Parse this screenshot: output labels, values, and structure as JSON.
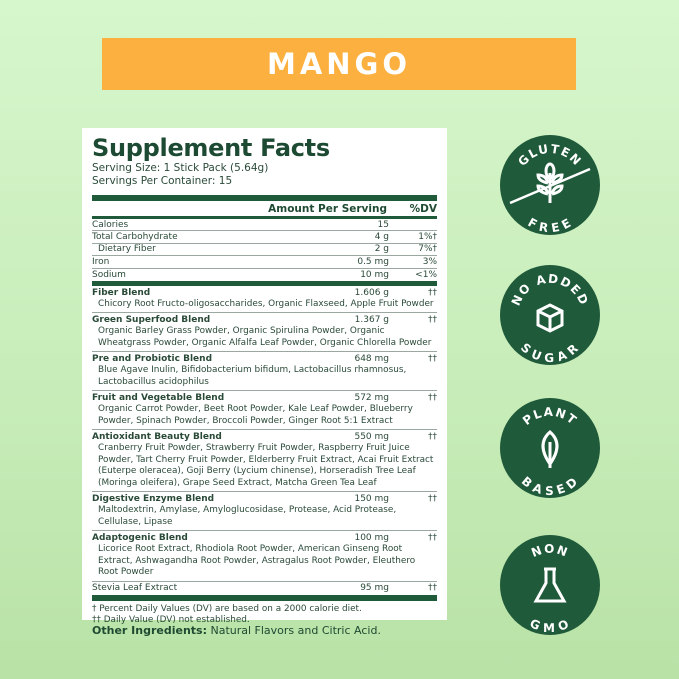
{
  "banner": {
    "flavor": "MANGO",
    "color": "#fbb040"
  },
  "facts": {
    "title": "Supplement Facts",
    "serving_size": "Serving Size: 1 Stick Pack (5.64g)",
    "servings_per_container": "Servings Per Container: 15",
    "header": {
      "amount": "Amount Per Serving",
      "dv": "%DV"
    },
    "nutrients": [
      {
        "name": "Calories",
        "amount": "15",
        "dv": ""
      },
      {
        "name": "Total Carbohydrate",
        "amount": "4 g",
        "dv": "1%†"
      },
      {
        "name": "Dietary Fiber",
        "amount": "2 g",
        "dv": "7%†"
      },
      {
        "name": "Iron",
        "amount": "0.5 mg",
        "dv": "3%"
      },
      {
        "name": "Sodium",
        "amount": "10 mg",
        "dv": "<1%"
      }
    ],
    "blends": [
      {
        "name": "Fiber Blend",
        "amount": "1.606 g",
        "dv": "††",
        "ingredients": "Chicory Root Fructo-oligosaccharides, Organic Flaxseed, Apple Fruit Powder"
      },
      {
        "name": "Green Superfood Blend",
        "amount": "1.367 g",
        "dv": "††",
        "ingredients": "Organic Barley Grass Powder, Organic Spirulina Powder, Organic Wheatgrass Powder, Organic Alfalfa Leaf Powder, Organic Chlorella Powder"
      },
      {
        "name": "Pre and Probiotic Blend",
        "amount": "648 mg",
        "dv": "††",
        "ingredients": "Blue Agave Inulin, Bifidobacterium bifidum, Lactobacillus rhamnosus, Lactobacillus acidophilus"
      },
      {
        "name": "Fruit and Vegetable Blend",
        "amount": "572 mg",
        "dv": "††",
        "ingredients": "Organic Carrot Powder, Beet Root Powder, Kale Leaf Powder, Blueberry Powder, Spinach Powder, Broccoli Powder, Ginger Root 5:1 Extract"
      },
      {
        "name": "Antioxidant Beauty Blend",
        "amount": "550 mg",
        "dv": "††",
        "ingredients": "Cranberry Fruit Powder, Strawberry Fruit Powder, Raspberry Fruit Juice Powder, Tart Cherry Fruit Powder, Elderberry Fruit Extract, Acai Fruit Extract (Euterpe oleracea), Goji Berry (Lycium chinense), Horseradish Tree Leaf (Moringa oleifera), Grape Seed Extract, Matcha Green Tea Leaf"
      },
      {
        "name": "Digestive Enzyme Blend",
        "amount": "150 mg",
        "dv": "††",
        "ingredients": "Maltodextrin, Amylase, Amyloglucosidase, Protease, Acid Protease, Cellulase, Lipase"
      },
      {
        "name": "Adaptogenic Blend",
        "amount": "100 mg",
        "dv": "††",
        "ingredients": "Licorice Root Extract, Rhodiola Root Powder, American Ginseng Root Extract, Ashwagandha Root Powder, Astragalus Root Powder, Eleuthero Root Powder"
      }
    ],
    "stevia": {
      "name": "Stevia Leaf Extract",
      "amount": "95 mg",
      "dv": "††"
    },
    "footnotes": [
      "† Percent Daily Values (DV) are based on a 2000 calorie diet.",
      "†† Daily Value (DV) not established."
    ]
  },
  "other": {
    "label": "Other Ingredients:",
    "value": " Natural Flavors and Citric Acid."
  },
  "badges": [
    {
      "top": "GLUTEN",
      "bottom": "FREE",
      "icon": "wheat-icon"
    },
    {
      "top": "NO ADDED",
      "bottom": "SUGAR",
      "icon": "sugar-cube-icon"
    },
    {
      "top": "PLANT",
      "bottom": "BASED",
      "icon": "leaf-icon"
    },
    {
      "top": "NON",
      "bottom": "GMO",
      "icon": "flask-icon"
    }
  ],
  "badge_color": "#1f5a3a"
}
